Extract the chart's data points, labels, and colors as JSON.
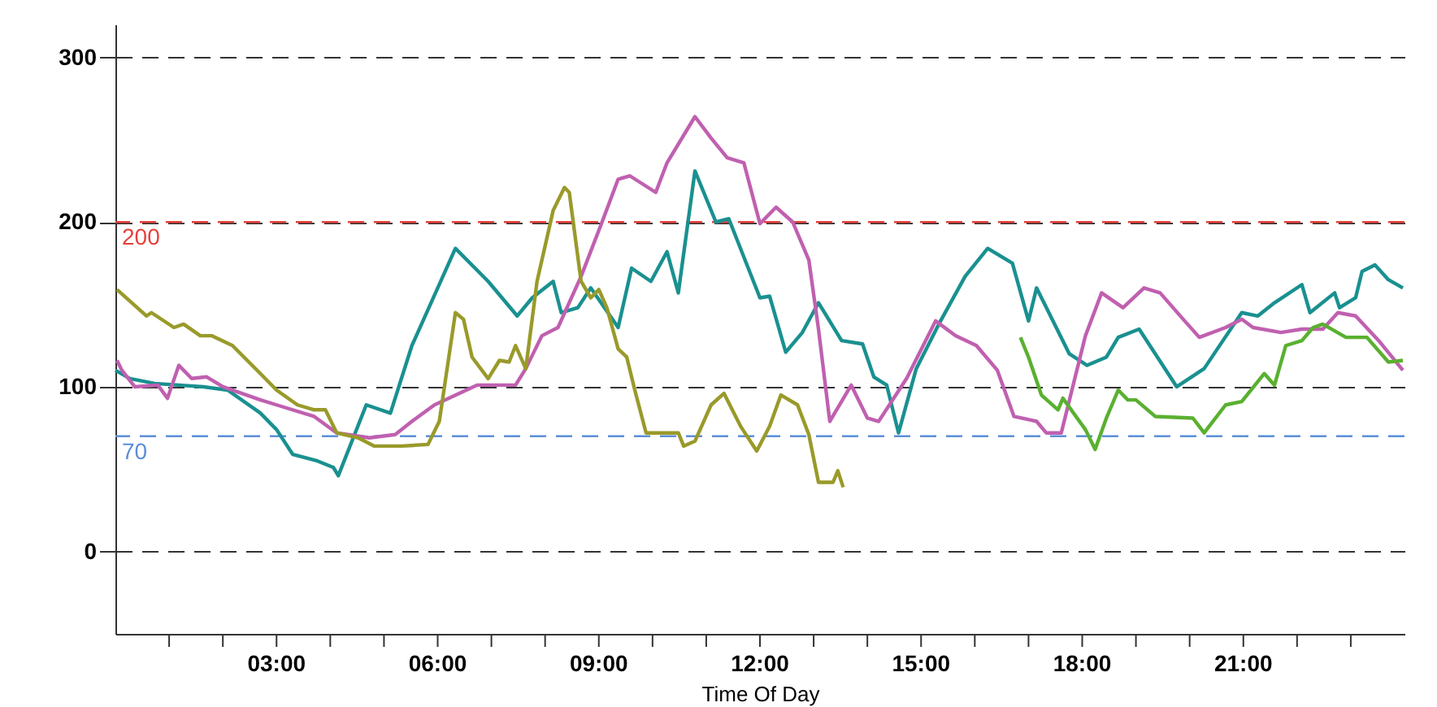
{
  "chart_data": {
    "type": "line",
    "xlabel": "Time Of Day",
    "xlim": [
      0,
      24
    ],
    "ylim": [
      -50,
      320
    ],
    "xticks": [
      {
        "value": 1,
        "label": null
      },
      {
        "value": 2,
        "label": null
      },
      {
        "value": 3,
        "label": "03:00"
      },
      {
        "value": 4,
        "label": null
      },
      {
        "value": 5,
        "label": null
      },
      {
        "value": 6,
        "label": "06:00"
      },
      {
        "value": 7,
        "label": null
      },
      {
        "value": 8,
        "label": null
      },
      {
        "value": 9,
        "label": "09:00"
      },
      {
        "value": 10,
        "label": null
      },
      {
        "value": 11,
        "label": null
      },
      {
        "value": 12,
        "label": "12:00"
      },
      {
        "value": 13,
        "label": null
      },
      {
        "value": 14,
        "label": null
      },
      {
        "value": 15,
        "label": "15:00"
      },
      {
        "value": 16,
        "label": null
      },
      {
        "value": 17,
        "label": null
      },
      {
        "value": 18,
        "label": "18:00"
      },
      {
        "value": 19,
        "label": null
      },
      {
        "value": 20,
        "label": null
      },
      {
        "value": 21,
        "label": "21:00"
      },
      {
        "value": 22,
        "label": null
      },
      {
        "value": 23,
        "label": null
      }
    ],
    "yticks": [
      0,
      100,
      200,
      300
    ],
    "grid": "y",
    "marker": "none",
    "line_style": "solid",
    "ref_lines": [
      {
        "axis": "y",
        "value": 200,
        "label": "200",
        "color": "#e8403a",
        "line_style": "dashed"
      },
      {
        "axis": "y",
        "value": 70,
        "label": "70",
        "color": "#5b8fd8",
        "line_style": "dashed"
      }
    ],
    "series": [
      {
        "color": "#1a9090",
        "x": [
          0.0,
          0.27,
          0.73,
          1.18,
          1.64,
          2.09,
          2.7,
          3.0,
          3.3,
          3.76,
          4.06,
          4.15,
          4.67,
          5.12,
          5.52,
          6.33,
          6.94,
          7.48,
          7.76,
          8.15,
          8.3,
          8.61,
          8.85,
          9.36,
          9.61,
          9.97,
          10.27,
          10.48,
          10.79,
          11.18,
          11.42,
          12.0,
          12.18,
          12.48,
          12.79,
          13.09,
          13.52,
          13.91,
          14.12,
          14.36,
          14.58,
          14.91,
          15.33,
          15.82,
          16.24,
          16.7,
          17.0,
          17.15,
          17.76,
          18.09,
          18.45,
          18.67,
          19.06,
          19.76,
          20.27,
          20.97,
          21.27,
          21.58,
          22.09,
          22.24,
          22.7,
          22.79,
          23.09,
          23.21,
          23.45,
          23.7,
          23.97
        ],
        "values": [
          110,
          105,
          102,
          101,
          100,
          98,
          84,
          74,
          59,
          55,
          51,
          46,
          89,
          84,
          125,
          184,
          164,
          143,
          154,
          164,
          145,
          148,
          160,
          136,
          172,
          164,
          182,
          157,
          231,
          200,
          202,
          154,
          155,
          121,
          133,
          151,
          128,
          126,
          106,
          101,
          72,
          111,
          138,
          167,
          184,
          175,
          140,
          160,
          120,
          113,
          118,
          130,
          135,
          100,
          111,
          145,
          143,
          151,
          162,
          145,
          157,
          148,
          154,
          170,
          174,
          165,
          160
        ]
      },
      {
        "color": "#c060b0",
        "x": [
          0.03,
          0.12,
          0.36,
          0.79,
          0.97,
          1.18,
          1.42,
          1.7,
          2.0,
          2.7,
          3.0,
          3.7,
          4.12,
          4.73,
          5.21,
          5.52,
          5.94,
          6.73,
          7.45,
          7.64,
          7.94,
          8.24,
          8.67,
          9.06,
          9.36,
          9.58,
          10.06,
          10.27,
          10.79,
          11.09,
          11.39,
          11.7,
          12.0,
          12.3,
          12.61,
          12.91,
          13.09,
          13.3,
          13.7,
          14.0,
          14.21,
          14.73,
          15.27,
          15.64,
          16.03,
          16.42,
          16.73,
          17.15,
          17.33,
          17.61,
          18.06,
          18.36,
          18.76,
          19.15,
          19.45,
          19.88,
          20.18,
          20.67,
          20.97,
          21.18,
          21.7,
          22.09,
          22.48,
          22.76,
          23.09,
          23.52,
          23.97
        ],
        "values": [
          116,
          110,
          100,
          101,
          93,
          113,
          105,
          106,
          100,
          92,
          89,
          82,
          72,
          69,
          71,
          79,
          89,
          101,
          101,
          111,
          131,
          136,
          167,
          200,
          226,
          228,
          218,
          236,
          264,
          251,
          239,
          236,
          199,
          209,
          200,
          177,
          135,
          79,
          101,
          81,
          79,
          105,
          140,
          131,
          125,
          110,
          82,
          79,
          72,
          72,
          131,
          157,
          148,
          160,
          157,
          141,
          130,
          136,
          141,
          136,
          133,
          135,
          135,
          145,
          143,
          128,
          110
        ]
      },
      {
        "color": "#999a2a",
        "x": [
          0.03,
          0.58,
          0.67,
          1.09,
          1.27,
          1.58,
          1.79,
          2.18,
          2.7,
          3.0,
          3.39,
          3.7,
          3.91,
          4.12,
          4.52,
          4.82,
          5.33,
          5.82,
          6.03,
          6.33,
          6.48,
          6.64,
          6.94,
          7.15,
          7.33,
          7.45,
          7.64,
          7.85,
          8.15,
          8.36,
          8.45,
          8.67,
          8.85,
          9.0,
          9.15,
          9.36,
          9.52,
          9.67,
          9.88,
          10.48,
          10.58,
          10.79,
          11.09,
          11.33,
          11.64,
          11.94,
          12.18,
          12.39,
          12.7,
          12.91,
          13.09,
          13.36,
          13.45,
          13.55
        ],
        "values": [
          159,
          143,
          145,
          136,
          138,
          131,
          131,
          125,
          108,
          98,
          89,
          86,
          86,
          72,
          69,
          64,
          64,
          65,
          79,
          145,
          141,
          118,
          105,
          116,
          115,
          125,
          111,
          164,
          207,
          221,
          218,
          164,
          154,
          159,
          148,
          123,
          118,
          98,
          72,
          72,
          64,
          67,
          89,
          96,
          76,
          61,
          76,
          95,
          89,
          71,
          42,
          42,
          49,
          39
        ]
      },
      {
        "color": "#5ab030",
        "x": [
          16.85,
          17.0,
          17.24,
          17.55,
          17.64,
          18.06,
          18.24,
          18.45,
          18.67,
          18.85,
          19.0,
          19.36,
          20.06,
          20.27,
          20.67,
          20.97,
          21.39,
          21.58,
          21.79,
          22.09,
          22.3,
          22.48,
          22.91,
          23.3,
          23.7,
          23.97
        ],
        "values": [
          130,
          118,
          95,
          86,
          93,
          74,
          62,
          81,
          98,
          92,
          92,
          82,
          81,
          72,
          89,
          91,
          108,
          101,
          125,
          128,
          136,
          138,
          130,
          130,
          115,
          116
        ]
      }
    ]
  }
}
